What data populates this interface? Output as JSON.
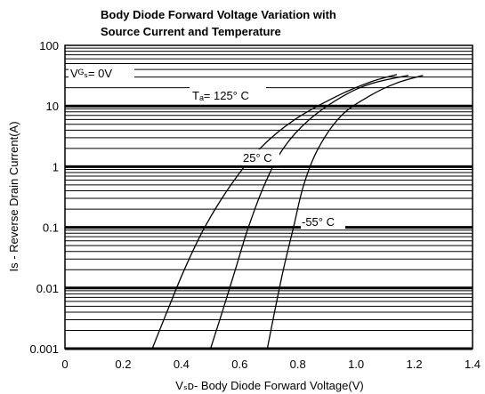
{
  "chart_data": {
    "type": "line",
    "title_lines": [
      "Body Diode Forward Voltage Variation with",
      "Source Current and Temperature"
    ],
    "xlabel": "Vₛᴅ- Body Diode Forward Voltage(V)",
    "ylabel": "Is - Reverse Drain Current(A)",
    "xlim": [
      0,
      1.4
    ],
    "ylim": [
      0.001,
      100
    ],
    "yscale": "log",
    "grid": true,
    "x_ticks": [
      "0",
      "0.2",
      "0.4",
      "0.6",
      "0.8",
      "1.0",
      "1.2",
      "1.4"
    ],
    "y_ticks": [
      "0.001",
      "0.01",
      "0.1",
      "1",
      "10",
      "100"
    ],
    "condition_label": "Vᴳₛ= 0V",
    "series": [
      {
        "label": "Tₐ= 125° C",
        "points": [
          [
            0.3,
            0.001
          ],
          [
            0.35,
            0.004
          ],
          [
            0.41,
            0.02
          ],
          [
            0.48,
            0.1
          ],
          [
            0.57,
            0.5
          ],
          [
            0.67,
            2
          ],
          [
            0.79,
            6
          ],
          [
            0.94,
            15
          ],
          [
            1.05,
            25
          ],
          [
            1.14,
            33
          ]
        ]
      },
      {
        "label": "25° C",
        "points": [
          [
            0.5,
            0.001
          ],
          [
            0.54,
            0.004
          ],
          [
            0.585,
            0.02
          ],
          [
            0.63,
            0.1
          ],
          [
            0.685,
            0.5
          ],
          [
            0.75,
            2
          ],
          [
            0.84,
            6
          ],
          [
            0.96,
            15
          ],
          [
            1.06,
            24
          ],
          [
            1.18,
            32
          ]
        ]
      },
      {
        "label": "-55° C",
        "points": [
          [
            0.695,
            0.001
          ],
          [
            0.72,
            0.004
          ],
          [
            0.75,
            0.02
          ],
          [
            0.785,
            0.1
          ],
          [
            0.82,
            0.5
          ],
          [
            0.87,
            2
          ],
          [
            0.95,
            7
          ],
          [
            1.05,
            15
          ],
          [
            1.14,
            24
          ],
          [
            1.23,
            32
          ]
        ]
      }
    ]
  }
}
